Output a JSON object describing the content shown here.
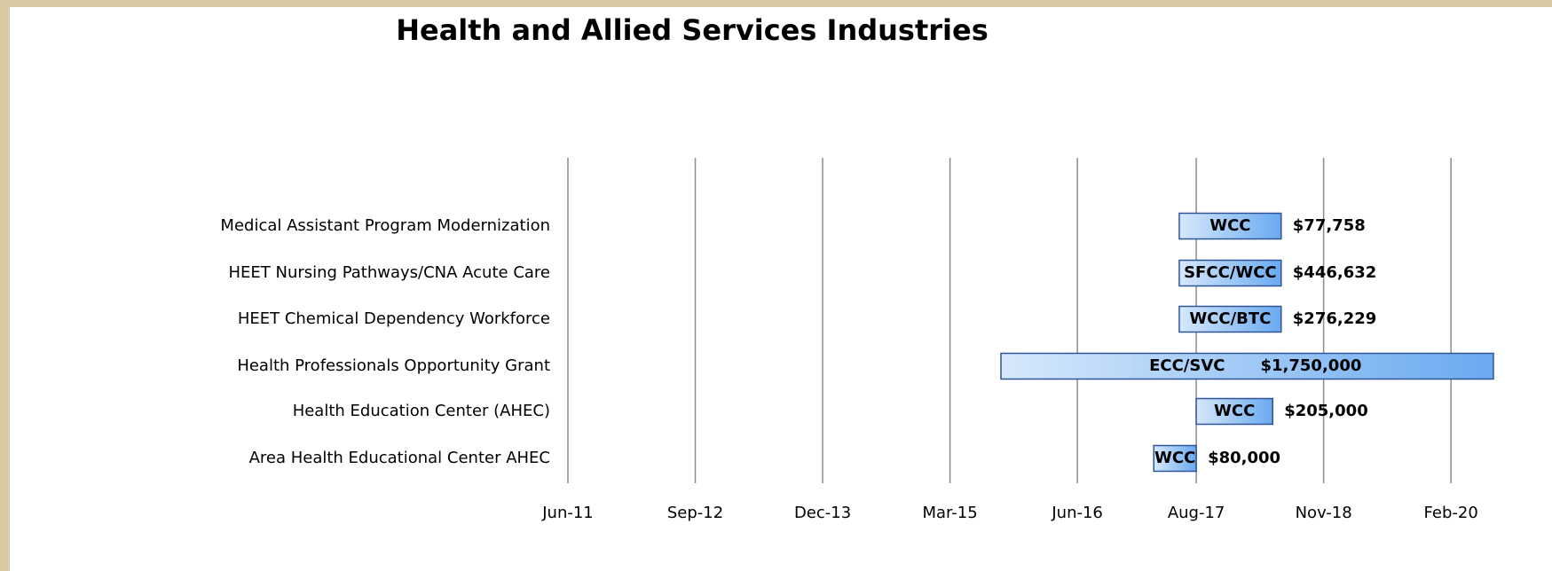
{
  "chart_data": {
    "type": "gantt",
    "title": "Health and Allied Services Industries",
    "categories": [
      "Medical Assistant Program Modernization",
      "HEET Nursing Pathways/CNA Acute Care",
      "HEET Chemical Dependency Workforce",
      "Health Professionals Opportunity Grant",
      "Health Education Center (AHEC)",
      "Area Health Educational Center AHEC"
    ],
    "bar_labels": [
      "WCC",
      "SFCC/WCC",
      "WCC/BTC",
      "ECC/SVC",
      "WCC",
      "WCC"
    ],
    "start": [
      "2017-06",
      "2017-06",
      "2017-06",
      "2015-09",
      "2017-08",
      "2017-03"
    ],
    "end": [
      "2018-06",
      "2018-06",
      "2018-06",
      "2020-07",
      "2018-05",
      "2017-08"
    ],
    "values": [
      77758,
      446632,
      276229,
      1750000,
      205000,
      80000
    ],
    "value_labels": [
      "$77,758",
      "$446,632",
      "$276,229",
      "$1,750,000",
      "$205,000",
      "$80,000"
    ],
    "color": "#6aaaf0",
    "xlim": [
      "2011-06",
      "2020-07"
    ],
    "xticks": [
      {
        "value": "2011-06",
        "label": "Jun-11"
      },
      {
        "value": "2012-09",
        "label": "Sep-12"
      },
      {
        "value": "2013-12",
        "label": "Dec-13"
      },
      {
        "value": "2015-03",
        "label": "Mar-15"
      },
      {
        "value": "2016-06",
        "label": "Jun-16"
      },
      {
        "value": "2017-08",
        "label": "Aug-17"
      },
      {
        "value": "2018-11",
        "label": "Nov-18"
      },
      {
        "value": "2020-02",
        "label": "Feb-20"
      }
    ],
    "grid": true
  }
}
